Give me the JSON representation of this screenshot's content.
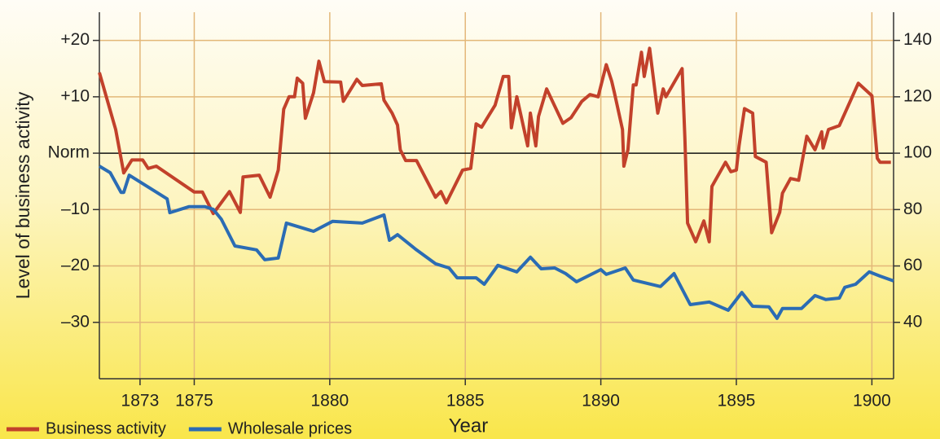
{
  "chart_data": {
    "type": "line",
    "xlabel": "Year",
    "ylabel": "Level of business activity",
    "xlim": [
      1871.5,
      1900.8
    ],
    "xticks": [
      1873,
      1875,
      1880,
      1885,
      1890,
      1895,
      1900
    ],
    "ylim": [
      -40,
      25
    ],
    "yticks": [
      {
        "value": 20,
        "label": "+20"
      },
      {
        "value": 10,
        "label": "+10"
      },
      {
        "value": 0,
        "label": "Norm"
      },
      {
        "value": -10,
        "label": "–10"
      },
      {
        "value": -20,
        "label": "–20"
      },
      {
        "value": -30,
        "label": "–30"
      }
    ],
    "y2lim": [
      20,
      150
    ],
    "y2ticks": [
      40,
      60,
      80,
      100,
      120,
      140
    ],
    "grid": true,
    "legend": "bottom-left",
    "series": [
      {
        "name": "Business activity",
        "color": "#c2412b",
        "x": [
          1871.5,
          1872.1,
          1872.4,
          1872.7,
          1873.1,
          1873.3,
          1873.6,
          1875.0,
          1875.3,
          1875.7,
          1876.3,
          1876.7,
          1876.8,
          1877.4,
          1877.8,
          1878.1,
          1878.3,
          1878.5,
          1878.7,
          1878.8,
          1879.0,
          1879.1,
          1879.4,
          1879.6,
          1879.8,
          1880.4,
          1880.5,
          1881.0,
          1881.2,
          1881.9,
          1882.0,
          1882.3,
          1882.5,
          1882.6,
          1882.8,
          1883.2,
          1883.9,
          1884.1,
          1884.3,
          1884.9,
          1885.2,
          1885.4,
          1885.6,
          1886.1,
          1886.4,
          1886.6,
          1886.7,
          1886.9,
          1887.3,
          1887.4,
          1887.6,
          1887.7,
          1888.0,
          1888.6,
          1888.9,
          1889.3,
          1889.6,
          1889.9,
          1890.2,
          1890.4,
          1890.5,
          1890.8,
          1890.85,
          1891.0,
          1891.2,
          1891.3,
          1891.5,
          1891.6,
          1891.8,
          1892.1,
          1892.3,
          1892.4,
          1893.0,
          1893.1,
          1893.2,
          1893.5,
          1893.8,
          1894.0,
          1894.1,
          1894.6,
          1894.8,
          1895.0,
          1895.1,
          1895.3,
          1895.6,
          1895.7,
          1896.1,
          1896.3,
          1896.6,
          1896.7,
          1897.0,
          1897.3,
          1897.6,
          1897.9,
          1898.15,
          1898.2,
          1898.4,
          1898.8,
          1899.5,
          1900.0,
          1900.2,
          1900.3,
          1900.7
        ],
        "values": [
          14.3,
          4.2,
          -3.5,
          -1.2,
          -1.2,
          -2.7,
          -2.3,
          -6.9,
          -6.9,
          -10.7,
          -6.8,
          -10.5,
          -4.2,
          -3.9,
          -7.8,
          -3.0,
          7.8,
          10,
          10,
          13.3,
          12.4,
          6.2,
          10.7,
          16.3,
          12.7,
          12.6,
          9.2,
          13.1,
          12,
          12.3,
          9.4,
          7.1,
          5,
          0.6,
          -1.3,
          -1.3,
          -7.8,
          -6.8,
          -8.8,
          -3,
          -2.7,
          5.2,
          4.6,
          8.5,
          13.6,
          13.6,
          4.5,
          10,
          1.3,
          7.1,
          1.3,
          6.5,
          11.4,
          5.3,
          6.3,
          9.2,
          10.4,
          10,
          15.7,
          12.8,
          10.7,
          4.2,
          -2.3,
          0.6,
          12.1,
          12.1,
          17.9,
          13.6,
          18.6,
          7.1,
          11.4,
          10,
          15,
          2.7,
          -12.4,
          -15.7,
          -12,
          -15.7,
          -5.9,
          -1.6,
          -3.3,
          -3,
          1.3,
          7.9,
          7.1,
          -0.6,
          -1.6,
          -14.1,
          -10.5,
          -7.1,
          -4.5,
          -4.8,
          3,
          0.6,
          3.8,
          0.9,
          4.2,
          4.9,
          12.4,
          10.2,
          -0.9,
          -1.6,
          -1.6
        ]
      },
      {
        "name": "Wholesale prices",
        "color": "#2b6cb4",
        "axis": "y2",
        "x": [
          1871.5,
          1871.9,
          1872.3,
          1872.4,
          1872.6,
          1874.0,
          1874.1,
          1874.8,
          1875.4,
          1875.7,
          1876.0,
          1876.5,
          1877.3,
          1877.6,
          1878.1,
          1878.4,
          1879.4,
          1880.1,
          1881.2,
          1882.0,
          1882.2,
          1882.5,
          1883.2,
          1883.9,
          1884.4,
          1884.7,
          1885.4,
          1885.7,
          1886.2,
          1886.9,
          1887.4,
          1887.8,
          1888.3,
          1888.7,
          1889.1,
          1890.0,
          1890.2,
          1890.9,
          1891.2,
          1892.2,
          1892.7,
          1893.3,
          1894.0,
          1894.7,
          1895.2,
          1895.6,
          1896.2,
          1896.5,
          1896.7,
          1897.4,
          1897.9,
          1898.3,
          1898.8,
          1899.0,
          1899.4,
          1899.9,
          1900.3,
          1900.8
        ],
        "values": [
          95.4,
          93.1,
          86.1,
          86.1,
          92.2,
          83.8,
          78.9,
          81,
          81,
          80.1,
          76.6,
          67.1,
          65.7,
          62.2,
          62.8,
          75.2,
          72.3,
          75.8,
          75.2,
          78.1,
          69.1,
          71.1,
          65.7,
          60.8,
          59.3,
          55.8,
          55.8,
          53.5,
          60.2,
          57.9,
          63.1,
          59,
          59.3,
          57.3,
          54.4,
          58.7,
          57,
          59.3,
          55,
          52.7,
          57.3,
          46.3,
          47.2,
          44.3,
          50.6,
          45.7,
          45.5,
          41.4,
          44.9,
          44.9,
          49.5,
          48.1,
          48.6,
          52.4,
          53.5,
          57.9,
          56.4,
          54.7
        ]
      }
    ]
  }
}
